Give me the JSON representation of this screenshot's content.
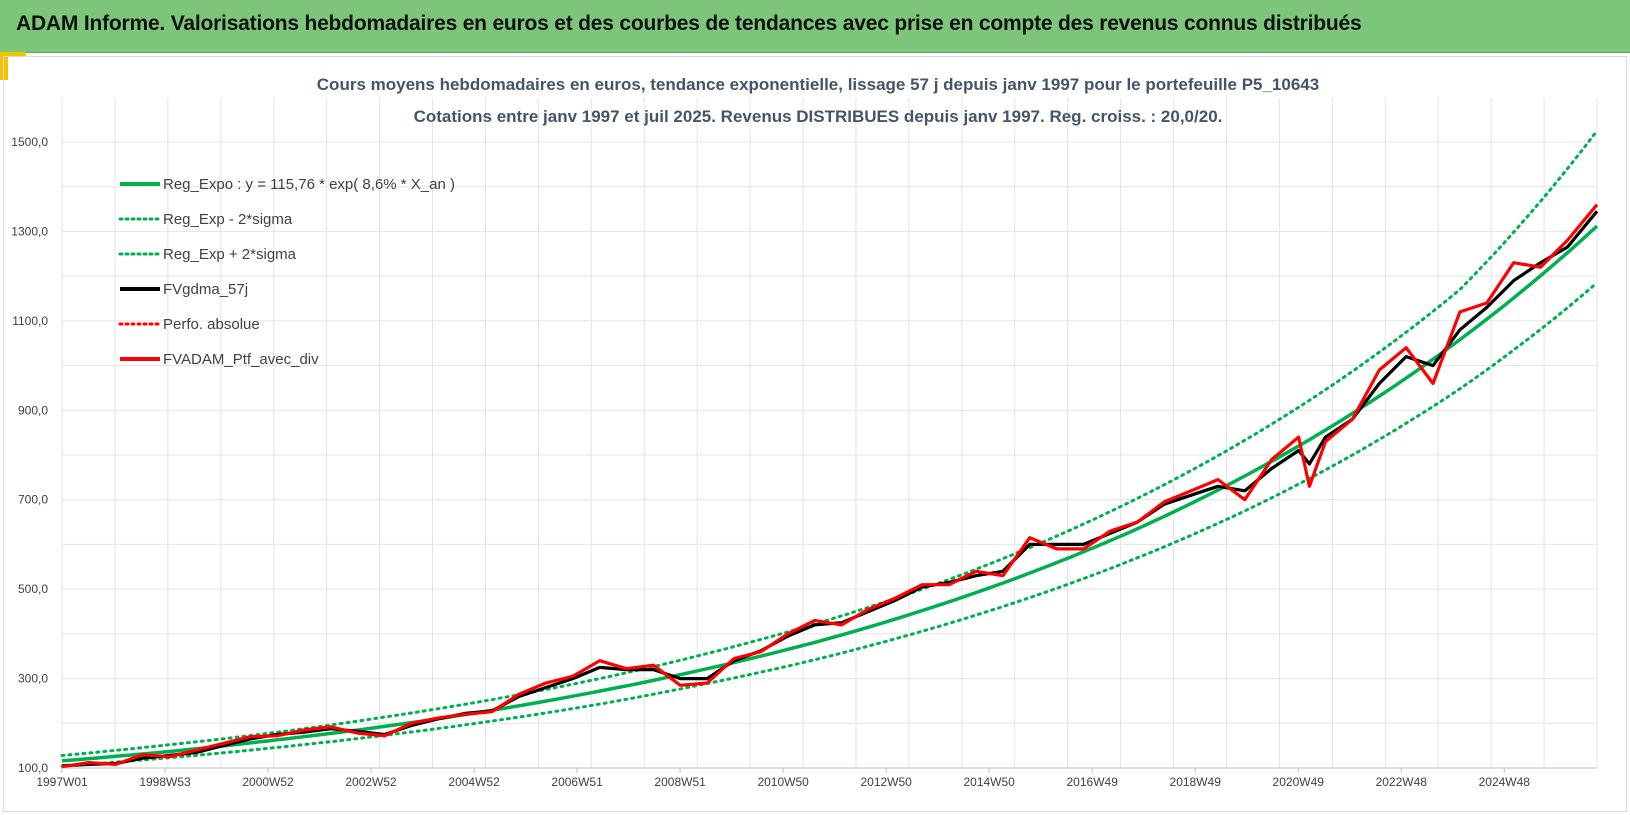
{
  "banner": {
    "title": "ADAM Informe. Valorisations hebdomadaires en euros et des courbes de tendances avec prise en compte des revenus connus distribués"
  },
  "colors": {
    "banner_bg": "#7dc57a",
    "accent": "#f2c400",
    "reg_expo": "#00b050",
    "fvgdma": "#000000",
    "portfolio": "#ff0000",
    "title": "#44546a"
  },
  "chart_data": {
    "type": "line",
    "title": "Cours moyens hebdomadaires  en euros, tendance exponentielle, lissage 57 j depuis janv 1997 pour le portefeuille P5_10643",
    "subtitle": "Cotations entre janv 1997 et juil 2025. Revenus DISTRIBUES depuis janv 1997. Reg. croiss. : 20,0/20.",
    "xlabel": "",
    "ylabel": "",
    "x_tick_labels": [
      "1997W01",
      "1998W53",
      "2000W52",
      "2002W52",
      "2004W52",
      "2006W51",
      "2008W51",
      "2010W50",
      "2012W50",
      "2014W50",
      "2016W49",
      "2018W49",
      "2020W49",
      "2022W48",
      "2024W48"
    ],
    "x_range_years": [
      1997.0,
      2025.55
    ],
    "y_tick_labels": [
      "100,0",
      "300,0",
      "500,0",
      "700,0",
      "900,0",
      "1100,0",
      "1300,0",
      "1500,0"
    ],
    "ylim": [
      100,
      1500
    ],
    "grid": true,
    "legend_position": "top-left",
    "legend": [
      {
        "label": "Reg_Expo : y = 115,76 * exp( 8,6% *  X_an )",
        "color": "#00b050",
        "style": "solid"
      },
      {
        "label": "Reg_Exp - 2*sigma",
        "color": "#00b050",
        "style": "dotted"
      },
      {
        "label": "Reg_Exp + 2*sigma",
        "color": "#00b050",
        "style": "dotted"
      },
      {
        "label": "FVgdma_57j",
        "color": "#000000",
        "style": "solid"
      },
      {
        "label": "Perfo. absolue",
        "color": "#ff0000",
        "style": "dotted"
      },
      {
        "label": "FVADAM_Ptf_avec_div",
        "color": "#ff0000",
        "style": "solid"
      }
    ],
    "series": [
      {
        "name": "Reg_Expo : y = 115,76 * exp( 8,6% *  X_an )",
        "x": [
          1997,
          1999,
          2001,
          2003,
          2005,
          2007,
          2009,
          2011,
          2013,
          2015,
          2017,
          2019,
          2021,
          2023,
          2025.55
        ],
        "values": [
          116,
          137,
          163,
          193,
          229,
          272,
          322,
          381,
          452,
          536,
          635,
          753,
          893,
          1058,
          1312
        ]
      },
      {
        "name": "Reg_Exp - 2*sigma",
        "x": [
          1997,
          1999,
          2001,
          2003,
          2005,
          2007,
          2009,
          2011,
          2013,
          2015,
          2017,
          2019,
          2021,
          2023,
          2025.55
        ],
        "values": [
          104,
          123,
          146,
          173,
          205,
          243,
          289,
          342,
          406,
          481,
          570,
          675,
          800,
          948,
          1185
        ]
      },
      {
        "name": "Reg_Exp + 2*sigma",
        "x": [
          1997,
          1999,
          2001,
          2003,
          2005,
          2007,
          2009,
          2011,
          2013,
          2015,
          2017,
          2019,
          2021,
          2023,
          2025.55
        ],
        "values": [
          128,
          152,
          180,
          214,
          253,
          300,
          356,
          422,
          500,
          593,
          703,
          833,
          987,
          1170,
          1525
        ]
      },
      {
        "name": "FVgdma_57j",
        "x": [
          1997.0,
          1997.5,
          1998.0,
          1998.5,
          1999.0,
          1999.5,
          2000.0,
          2000.5,
          2001.0,
          2001.5,
          2002.0,
          2002.5,
          2003.0,
          2003.5,
          2004.0,
          2004.5,
          2005.0,
          2005.5,
          2006.0,
          2006.5,
          2007.0,
          2007.5,
          2008.0,
          2008.5,
          2009.0,
          2009.5,
          2010.0,
          2010.5,
          2011.0,
          2011.5,
          2012.0,
          2012.5,
          2013.0,
          2013.5,
          2014.0,
          2014.5,
          2015.0,
          2015.5,
          2016.0,
          2016.5,
          2017.0,
          2017.5,
          2018.0,
          2018.5,
          2019.0,
          2019.5,
          2020.0,
          2020.2,
          2020.5,
          2021.0,
          2021.5,
          2022.0,
          2022.5,
          2023.0,
          2023.5,
          2024.0,
          2024.5,
          2025.0,
          2025.55
        ],
        "values": [
          105,
          108,
          110,
          122,
          128,
          135,
          150,
          165,
          175,
          180,
          188,
          182,
          175,
          195,
          210,
          222,
          228,
          260,
          280,
          300,
          325,
          320,
          320,
          300,
          300,
          340,
          362,
          395,
          420,
          425,
          450,
          475,
          505,
          515,
          530,
          540,
          600,
          600,
          600,
          625,
          650,
          690,
          710,
          730,
          720,
          770,
          810,
          780,
          840,
          880,
          960,
          1020,
          1000,
          1080,
          1130,
          1190,
          1230,
          1265,
          1345
        ]
      },
      {
        "name": "FVADAM_Ptf_avec_div",
        "x": [
          1997.0,
          1997.5,
          1998.0,
          1998.5,
          1999.0,
          1999.5,
          2000.0,
          2000.5,
          2001.0,
          2001.5,
          2002.0,
          2002.5,
          2003.0,
          2003.5,
          2004.0,
          2004.5,
          2005.0,
          2005.5,
          2006.0,
          2006.5,
          2007.0,
          2007.5,
          2008.0,
          2008.5,
          2009.0,
          2009.5,
          2010.0,
          2010.5,
          2011.0,
          2011.5,
          2012.0,
          2012.5,
          2013.0,
          2013.5,
          2014.0,
          2014.5,
          2015.0,
          2015.5,
          2016.0,
          2016.5,
          2017.0,
          2017.5,
          2018.0,
          2018.5,
          2019.0,
          2019.5,
          2020.0,
          2020.2,
          2020.5,
          2021.0,
          2021.5,
          2022.0,
          2022.5,
          2023.0,
          2023.5,
          2024.0,
          2024.5,
          2025.0,
          2025.55
        ],
        "values": [
          103,
          112,
          108,
          130,
          125,
          140,
          155,
          170,
          172,
          185,
          192,
          178,
          172,
          200,
          212,
          220,
          226,
          265,
          290,
          305,
          340,
          322,
          330,
          285,
          290,
          345,
          360,
          400,
          430,
          420,
          455,
          480,
          510,
          510,
          540,
          530,
          615,
          590,
          590,
          630,
          650,
          695,
          720,
          745,
          700,
          790,
          840,
          730,
          830,
          880,
          990,
          1040,
          960,
          1120,
          1140,
          1230,
          1220,
          1280,
          1360
        ]
      }
    ]
  }
}
